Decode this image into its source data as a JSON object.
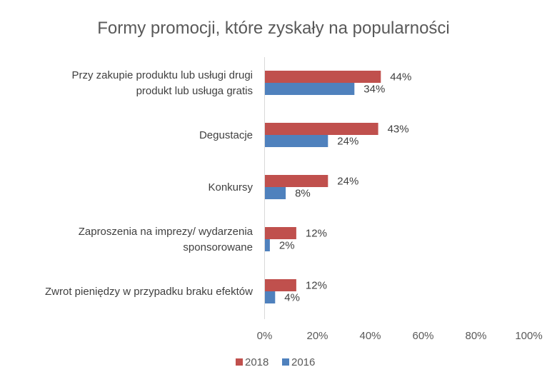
{
  "chart_data": {
    "type": "bar",
    "orientation": "horizontal",
    "title": "Formy promocji, które zyskały na popularności",
    "categories": [
      [
        "Przy zakupie produktu lub usługi drugi",
        "produkt lub usługa gratis"
      ],
      [
        "Degustacje"
      ],
      [
        "Konkursy"
      ],
      [
        "Zaproszenia na imprezy/ wydarzenia",
        "sponsorowane"
      ],
      [
        "Zwrot pieniędzy w przypadku braku efektów"
      ]
    ],
    "series": [
      {
        "name": "2018",
        "color": "#c0504d",
        "values": [
          44,
          43,
          24,
          12,
          12
        ]
      },
      {
        "name": "2016",
        "color": "#4f81bd",
        "values": [
          34,
          24,
          8,
          2,
          4
        ]
      }
    ],
    "value_suffix": "%",
    "xlim": [
      0,
      100
    ],
    "xticks": [
      0,
      20,
      40,
      60,
      80,
      100
    ],
    "grid": false,
    "legend": "bottom"
  }
}
